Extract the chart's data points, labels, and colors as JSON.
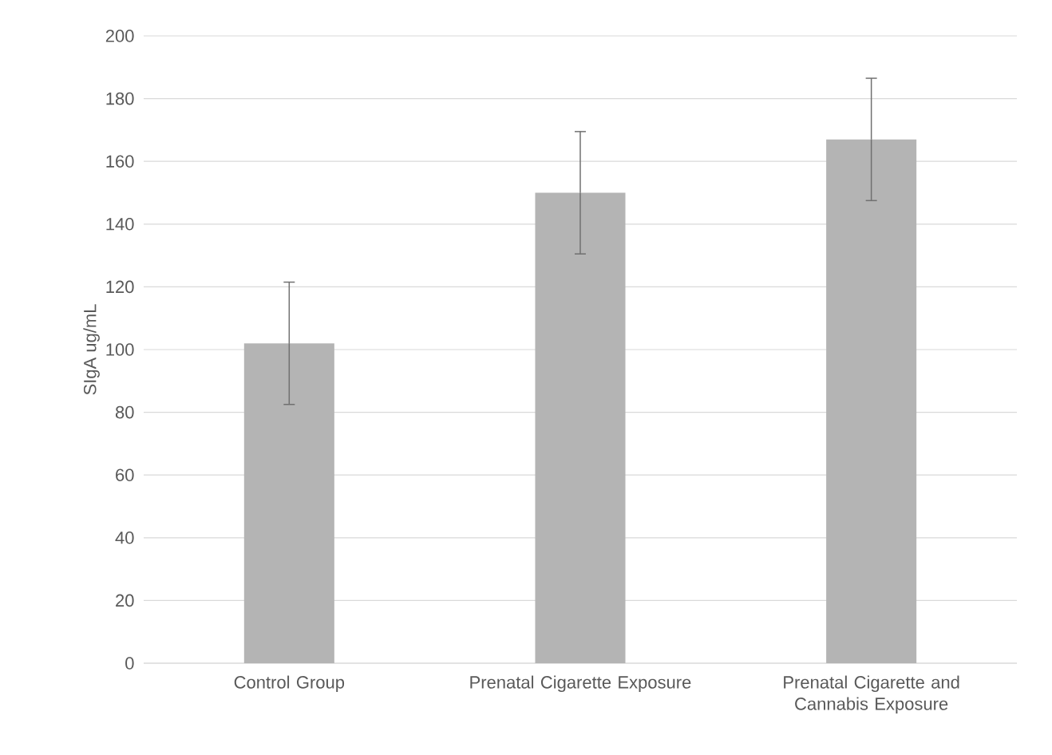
{
  "chart_data": {
    "type": "bar",
    "ylabel": "SIgA ug/mL",
    "categories": [
      "Control Group",
      "Prenatal Cigarette Exposure",
      "Prenatal Cigarette and Cannabis Exposure"
    ],
    "values": [
      102,
      150,
      167
    ],
    "errors": [
      19.5,
      19.5,
      19.5
    ],
    "color": "#b4b4b4",
    "ylim": [
      0,
      200
    ],
    "yticks": [
      0,
      20,
      40,
      60,
      80,
      100,
      120,
      140,
      160,
      180,
      200
    ],
    "grid": "y"
  }
}
